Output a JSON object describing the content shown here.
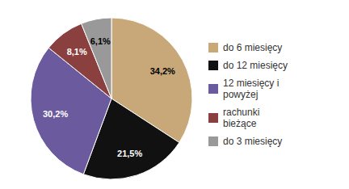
{
  "chart_data": {
    "type": "pie",
    "categories": [
      "do 6 miesięcy",
      "do 12 miesięcy",
      "12 miesięcy i\npowyżej",
      "rachunki\nbieżące",
      "do 3 miesięcy"
    ],
    "values": [
      34.2,
      21.5,
      30.2,
      8.1,
      6.1
    ],
    "value_labels": [
      "34,2%",
      "21,5%",
      "30,2%",
      "8,1%",
      "6,1%"
    ],
    "colors": [
      "#C8A878",
      "#111111",
      "#6B5B9E",
      "#8B4040",
      "#999999"
    ],
    "data_labels": true,
    "legend": "right"
  }
}
